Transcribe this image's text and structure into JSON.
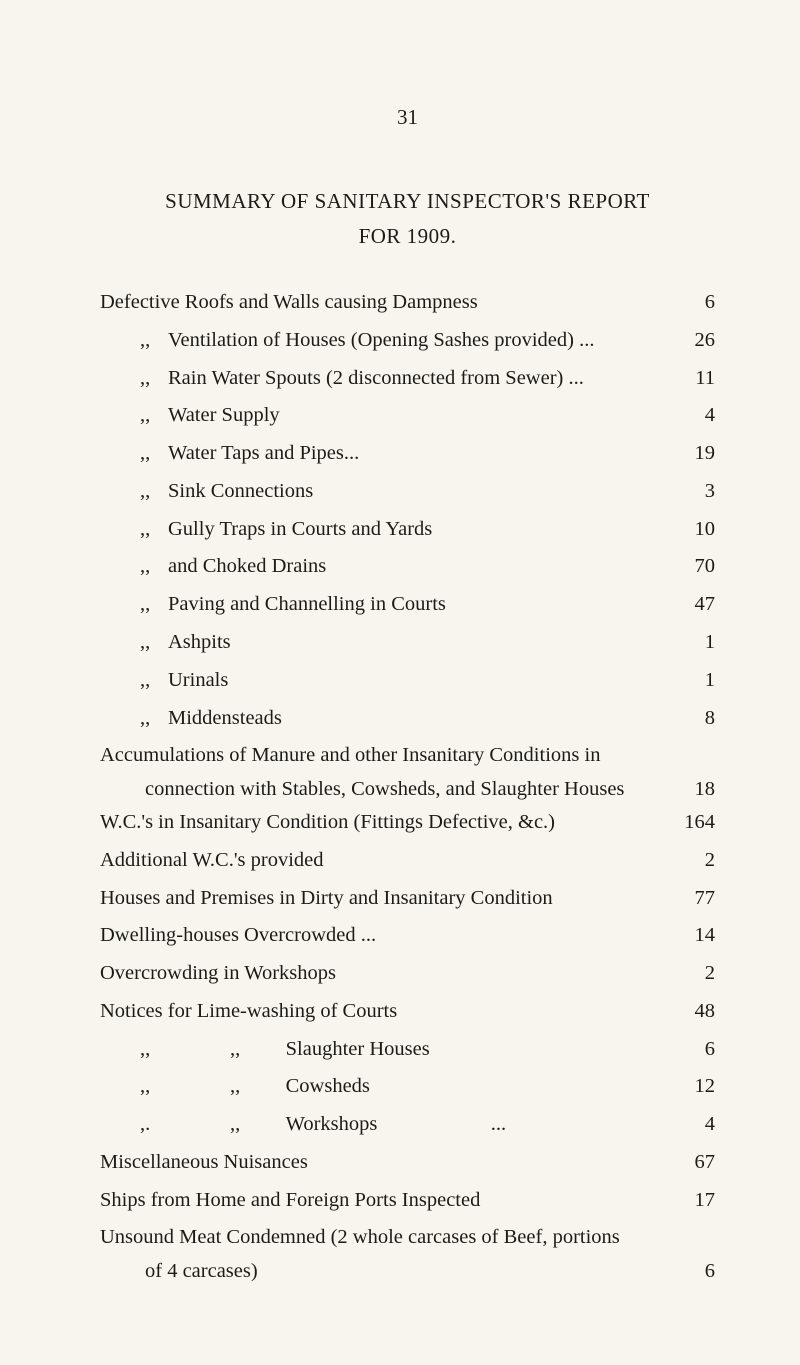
{
  "page_number": "31",
  "title_l1": "SUMMARY OF SANITARY INSPECTOR'S REPORT",
  "title_l2": "FOR 1909.",
  "rows": [
    {
      "label": "Defective Roofs and Walls causing Dampness",
      "val": "6"
    },
    {
      "label": "Ventilation of Houses (Opening Sashes provided)",
      "val": "26",
      "ditto": ",,"
    },
    {
      "label": "Rain Water Spouts (2 disconnected from Sewer)",
      "val": "11",
      "ditto": ",,"
    },
    {
      "label": "Water Supply",
      "val": "4",
      "ditto": ",,"
    },
    {
      "label": "Water Taps and Pipes...",
      "val": "19",
      "ditto": ",,"
    },
    {
      "label": "Sink Connections",
      "val": "3",
      "ditto": ",,"
    },
    {
      "label": "Gully Traps in Courts and Yards",
      "val": "10",
      "ditto": ",,"
    },
    {
      "label": "and Choked Drains",
      "val": "70",
      "ditto": ",,"
    },
    {
      "label": "Paving and Channelling in Courts",
      "val": "47",
      "ditto": ",,"
    },
    {
      "label": "Ashpits",
      "val": "1",
      "ditto": ",,"
    },
    {
      "label": "Urinals",
      "val": "1",
      "ditto": ",,"
    },
    {
      "label": "Middensteads",
      "val": "8",
      "ditto": ",,"
    }
  ],
  "accum_l1": "Accumulations of Manure and other Insanitary Conditions in",
  "accum_l2": "connection with Stables, Cowsheds, and Slaughter Houses",
  "accum_val": "18",
  "wc_cond": "W.C.'s in Insanitary Condition (Fittings Defective, &c.)",
  "wc_cond_val": "164",
  "wc_add": "Additional W.C.'s provided",
  "wc_add_val": "2",
  "houses": "Houses and Premises in Dirty and Insanitary Condition",
  "houses_val": "77",
  "dwell": "Dwelling-houses Overcrowded",
  "dwell_val": "14",
  "workov": "Overcrowding in Workshops",
  "workov_val": "2",
  "notices": "Notices for Lime-washing of Courts",
  "notices_val": "48",
  "n_slaughter": "Slaughter Houses",
  "n_slaughter_val": "6",
  "n_cow": "Cowsheds",
  "n_cow_val": "12",
  "n_work": "Workshops",
  "n_work_val": "4",
  "misc": "Miscellaneous Nuisances",
  "misc_val": "67",
  "ships": "Ships from Home and Foreign Ports Inspected",
  "ships_val": "17",
  "meat_l1": "Unsound Meat Condemned (2 whole carcases of Beef, portions",
  "meat_l2": "of 4 carcases)",
  "meat_val": "6",
  "ditto_mark": ",,"
}
